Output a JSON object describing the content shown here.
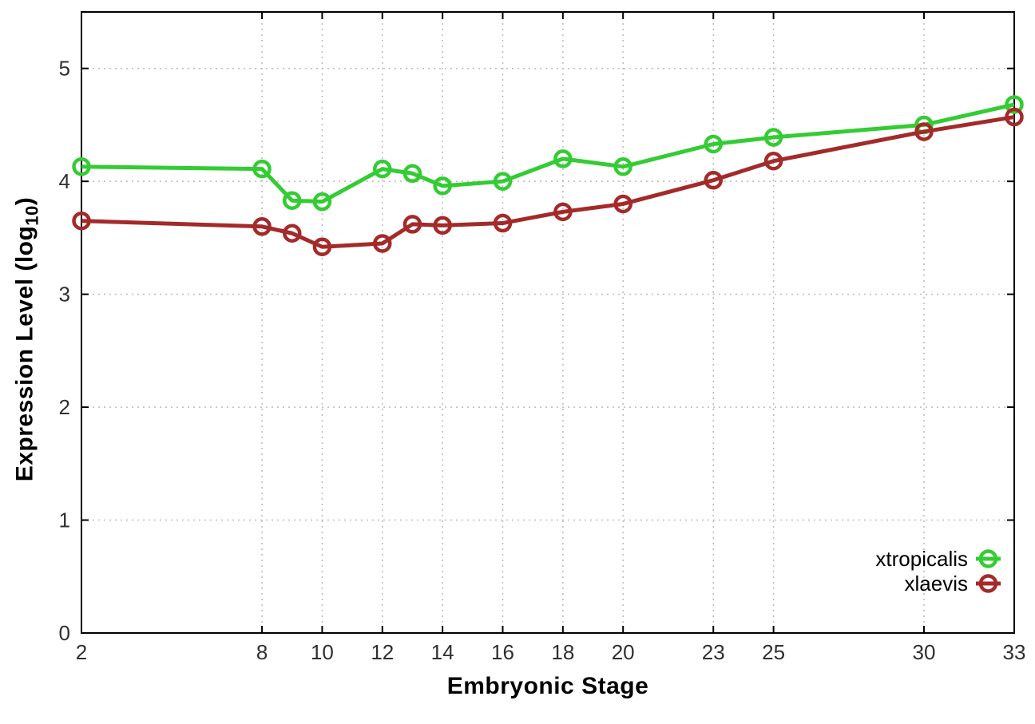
{
  "chart_data": {
    "type": "line",
    "title": "",
    "xlabel": "Embryonic Stage",
    "ylabel": "Expression Level (log10)",
    "ylabel_parts": {
      "pre": "Expression Level (log",
      "sub": "10",
      "post": ")"
    },
    "xlim": [
      2,
      33
    ],
    "ylim": [
      0,
      5.5
    ],
    "x_ticks": [
      2,
      8,
      10,
      12,
      14,
      16,
      18,
      20,
      23,
      25,
      30,
      33
    ],
    "y_ticks": [
      0,
      1,
      2,
      3,
      4,
      5
    ],
    "grid": true,
    "grid_style": "dotted",
    "legend_position": "bottom-right-inside",
    "marker": "open-circle",
    "x": [
      2,
      8,
      9,
      10,
      12,
      13,
      14,
      16,
      18,
      20,
      23,
      25,
      30,
      33
    ],
    "series": [
      {
        "name": "xtropicalis",
        "color": "#33cc33",
        "values": [
          4.13,
          4.11,
          3.83,
          3.82,
          4.11,
          4.07,
          3.96,
          4.0,
          4.2,
          4.13,
          4.33,
          4.39,
          4.5,
          4.68
        ]
      },
      {
        "name": "xlaevis",
        "color": "#a42a2a",
        "values": [
          3.65,
          3.6,
          3.54,
          3.42,
          3.45,
          3.62,
          3.61,
          3.63,
          3.73,
          3.8,
          4.01,
          4.18,
          4.44,
          4.57
        ]
      }
    ],
    "axis_color": "#000000",
    "grid_color": "#bbbbbb",
    "tick_label_color": "#303030",
    "legend_text_color": "#000000"
  }
}
